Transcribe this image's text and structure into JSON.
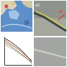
{
  "figure": {
    "panel_label": "a)"
  },
  "chart_data": {
    "type": "line",
    "tick_labels": false,
    "x": [
      0,
      2,
      4,
      6,
      8,
      10
    ],
    "xlim": [
      0,
      10
    ],
    "ylim": [
      0,
      10
    ],
    "series": [
      {
        "color": "#222222",
        "line_style": "solid",
        "values": [
          9.5,
          8.4,
          7.0,
          5.4,
          3.4,
          1.2
        ]
      },
      {
        "color": "#c0392b",
        "line_style": "solid",
        "values": [
          8.9,
          7.6,
          6.3,
          4.9,
          3.1,
          1.6
        ]
      },
      {
        "color": "#2e8b3a",
        "line_style": "solid",
        "values": [
          8.0,
          6.9,
          5.5,
          4.0,
          2.5,
          0.8
        ]
      },
      {
        "color": "#e74c3c",
        "line_style": "dashed",
        "values": [
          7.2,
          6.2,
          5.0,
          3.7,
          2.3,
          0.5
        ]
      }
    ]
  }
}
